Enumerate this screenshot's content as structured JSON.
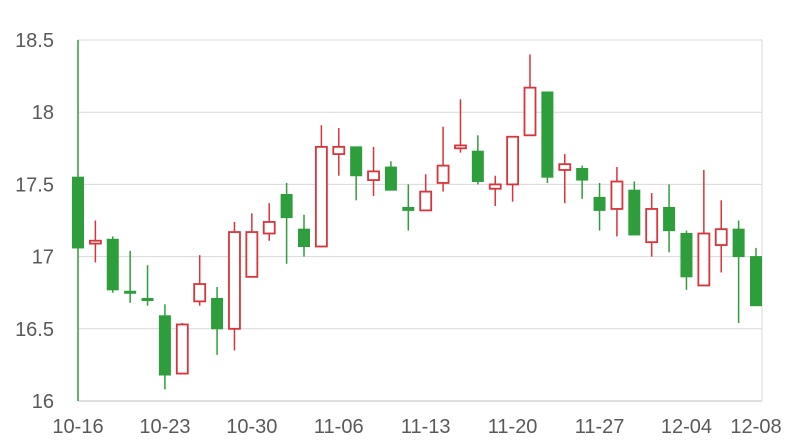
{
  "chart_data": {
    "type": "candlestick",
    "title": "",
    "xlabel": "",
    "ylabel": "",
    "ylim": [
      16,
      18.5
    ],
    "yticks": [
      "16",
      "16.5",
      "17",
      "17.5",
      "18",
      "18.5"
    ],
    "ytick_values": [
      16,
      16.5,
      17,
      17.5,
      18,
      18.5
    ],
    "xtick_labels": [
      "10-16",
      "10-23",
      "10-30",
      "11-06",
      "11-13",
      "11-20",
      "11-27",
      "12-04",
      "12-08"
    ],
    "grid": true,
    "colors": {
      "up": "#d9343b",
      "down": "#2e9e3c",
      "grid": "#d9d9d9",
      "axis": "#bfbfbf",
      "text": "#595959"
    },
    "candles": [
      {
        "date": "10-16",
        "open": 17.55,
        "close": 17.06,
        "high": 18.5,
        "low": 16.0
      },
      {
        "date": "10-17",
        "open": 17.09,
        "close": 17.11,
        "high": 17.25,
        "low": 16.96
      },
      {
        "date": "10-18",
        "open": 17.12,
        "close": 16.77,
        "high": 17.14,
        "low": 16.75
      },
      {
        "date": "10-19",
        "open": 16.76,
        "close": 16.75,
        "high": 17.04,
        "low": 16.68
      },
      {
        "date": "10-20",
        "open": 16.71,
        "close": 16.7,
        "high": 16.94,
        "low": 16.66
      },
      {
        "date": "10-23",
        "open": 16.59,
        "close": 16.18,
        "high": 16.67,
        "low": 16.08
      },
      {
        "date": "10-24",
        "open": 16.19,
        "close": 16.53,
        "high": 16.54,
        "low": 16.19
      },
      {
        "date": "10-25",
        "open": 16.69,
        "close": 16.81,
        "high": 17.01,
        "low": 16.66
      },
      {
        "date": "10-26",
        "open": 16.71,
        "close": 16.5,
        "high": 16.79,
        "low": 16.32
      },
      {
        "date": "10-27",
        "open": 16.5,
        "close": 17.17,
        "high": 17.24,
        "low": 16.35
      },
      {
        "date": "10-30",
        "open": 16.86,
        "close": 17.17,
        "high": 17.3,
        "low": 16.86
      },
      {
        "date": "10-31",
        "open": 17.16,
        "close": 17.24,
        "high": 17.37,
        "low": 17.11
      },
      {
        "date": "11-01",
        "open": 17.43,
        "close": 17.27,
        "high": 17.51,
        "low": 16.95
      },
      {
        "date": "11-02",
        "open": 17.19,
        "close": 17.07,
        "high": 17.29,
        "low": 17.0
      },
      {
        "date": "11-03",
        "open": 17.07,
        "close": 17.76,
        "high": 17.91,
        "low": 17.07
      },
      {
        "date": "11-06",
        "open": 17.71,
        "close": 17.76,
        "high": 17.89,
        "low": 17.56
      },
      {
        "date": "11-07",
        "open": 17.76,
        "close": 17.56,
        "high": 17.76,
        "low": 17.39
      },
      {
        "date": "11-08",
        "open": 17.53,
        "close": 17.59,
        "high": 17.76,
        "low": 17.42
      },
      {
        "date": "11-09",
        "open": 17.62,
        "close": 17.46,
        "high": 17.66,
        "low": 17.46
      },
      {
        "date": "11-10",
        "open": 17.34,
        "close": 17.32,
        "high": 17.5,
        "low": 17.18
      },
      {
        "date": "11-13",
        "open": 17.32,
        "close": 17.45,
        "high": 17.57,
        "low": 17.32
      },
      {
        "date": "11-14",
        "open": 17.51,
        "close": 17.63,
        "high": 17.9,
        "low": 17.45
      },
      {
        "date": "11-15",
        "open": 17.75,
        "close": 17.77,
        "high": 18.09,
        "low": 17.72
      },
      {
        "date": "11-16",
        "open": 17.73,
        "close": 17.52,
        "high": 17.84,
        "low": 17.5
      },
      {
        "date": "11-17",
        "open": 17.47,
        "close": 17.5,
        "high": 17.56,
        "low": 17.35
      },
      {
        "date": "11-20",
        "open": 17.5,
        "close": 17.83,
        "high": 17.83,
        "low": 17.38
      },
      {
        "date": "11-21",
        "open": 17.84,
        "close": 18.17,
        "high": 18.4,
        "low": 17.84
      },
      {
        "date": "11-22",
        "open": 18.14,
        "close": 17.55,
        "high": 18.14,
        "low": 17.51
      },
      {
        "date": "11-23",
        "open": 17.6,
        "close": 17.64,
        "high": 17.71,
        "low": 17.37
      },
      {
        "date": "11-24",
        "open": 17.61,
        "close": 17.53,
        "high": 17.63,
        "low": 17.4
      },
      {
        "date": "11-27",
        "open": 17.41,
        "close": 17.32,
        "high": 17.51,
        "low": 17.18
      },
      {
        "date": "11-28",
        "open": 17.33,
        "close": 17.52,
        "high": 17.62,
        "low": 17.14
      },
      {
        "date": "11-29",
        "open": 17.46,
        "close": 17.15,
        "high": 17.52,
        "low": 17.15
      },
      {
        "date": "11-30",
        "open": 17.1,
        "close": 17.33,
        "high": 17.44,
        "low": 17.0
      },
      {
        "date": "12-01",
        "open": 17.34,
        "close": 17.18,
        "high": 17.5,
        "low": 17.03
      },
      {
        "date": "12-04",
        "open": 17.16,
        "close": 16.86,
        "high": 17.18,
        "low": 16.77
      },
      {
        "date": "12-05",
        "open": 16.8,
        "close": 17.16,
        "high": 17.6,
        "low": 16.8
      },
      {
        "date": "12-06",
        "open": 17.08,
        "close": 17.19,
        "high": 17.39,
        "low": 16.89
      },
      {
        "date": "12-07",
        "open": 17.19,
        "close": 17.0,
        "high": 17.25,
        "low": 16.54
      },
      {
        "date": "12-08",
        "open": 17.0,
        "close": 16.66,
        "high": 17.06,
        "low": 16.66
      }
    ]
  }
}
